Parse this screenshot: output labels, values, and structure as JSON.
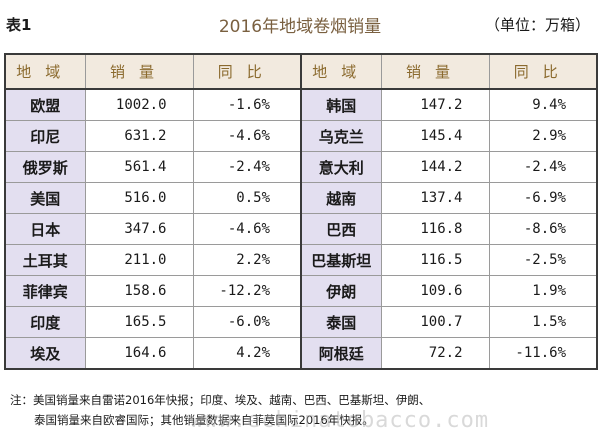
{
  "table_label": "表1",
  "title": "2016年地域卷烟销量",
  "unit": "（单位：万箱）",
  "headers": [
    "地域",
    "销量",
    "同比",
    "地域",
    "销量",
    "同比"
  ],
  "rows": [
    {
      "left": {
        "region": "欧盟",
        "sales": "1002.0",
        "change": "-1.6%"
      },
      "right": {
        "region": "韩国",
        "sales": "147.2",
        "change": "9.4%"
      }
    },
    {
      "left": {
        "region": "印尼",
        "sales": "631.2",
        "change": "-4.6%"
      },
      "right": {
        "region": "乌克兰",
        "sales": "145.4",
        "change": "2.9%"
      }
    },
    {
      "left": {
        "region": "俄罗斯",
        "sales": "561.4",
        "change": "-2.4%"
      },
      "right": {
        "region": "意大利",
        "sales": "144.2",
        "change": "-2.4%"
      }
    },
    {
      "left": {
        "region": "美国",
        "sales": "516.0",
        "change": "0.5%"
      },
      "right": {
        "region": "越南",
        "sales": "137.4",
        "change": "-6.9%"
      }
    },
    {
      "left": {
        "region": "日本",
        "sales": "347.6",
        "change": "-4.6%"
      },
      "right": {
        "region": "巴西",
        "sales": "116.8",
        "change": "-8.6%"
      }
    },
    {
      "left": {
        "region": "土耳其",
        "sales": "211.0",
        "change": "2.2%"
      },
      "right": {
        "region": "巴基斯坦",
        "sales": "116.5",
        "change": "-2.5%"
      }
    },
    {
      "left": {
        "region": "菲律宾",
        "sales": "158.6",
        "change": "-12.2%"
      },
      "right": {
        "region": "伊朗",
        "sales": "109.6",
        "change": "1.9%"
      }
    },
    {
      "left": {
        "region": "印度",
        "sales": "165.5",
        "change": "-6.0%"
      },
      "right": {
        "region": "泰国",
        "sales": "100.7",
        "change": "1.5%"
      }
    },
    {
      "left": {
        "region": "埃及",
        "sales": "164.6",
        "change": "4.2%"
      },
      "right": {
        "region": "阿根廷",
        "sales": "72.2",
        "change": "-11.6%"
      }
    }
  ],
  "note_line1": "注：美国销量来自雷诺2016年快报；印度、埃及、越南、巴西、巴基斯坦、伊朗、",
  "note_line2": "泰国销量来自欧睿国际；其他销量数据来自菲莫国际2016年快报。",
  "watermark": "www.echinatobacco.com"
}
